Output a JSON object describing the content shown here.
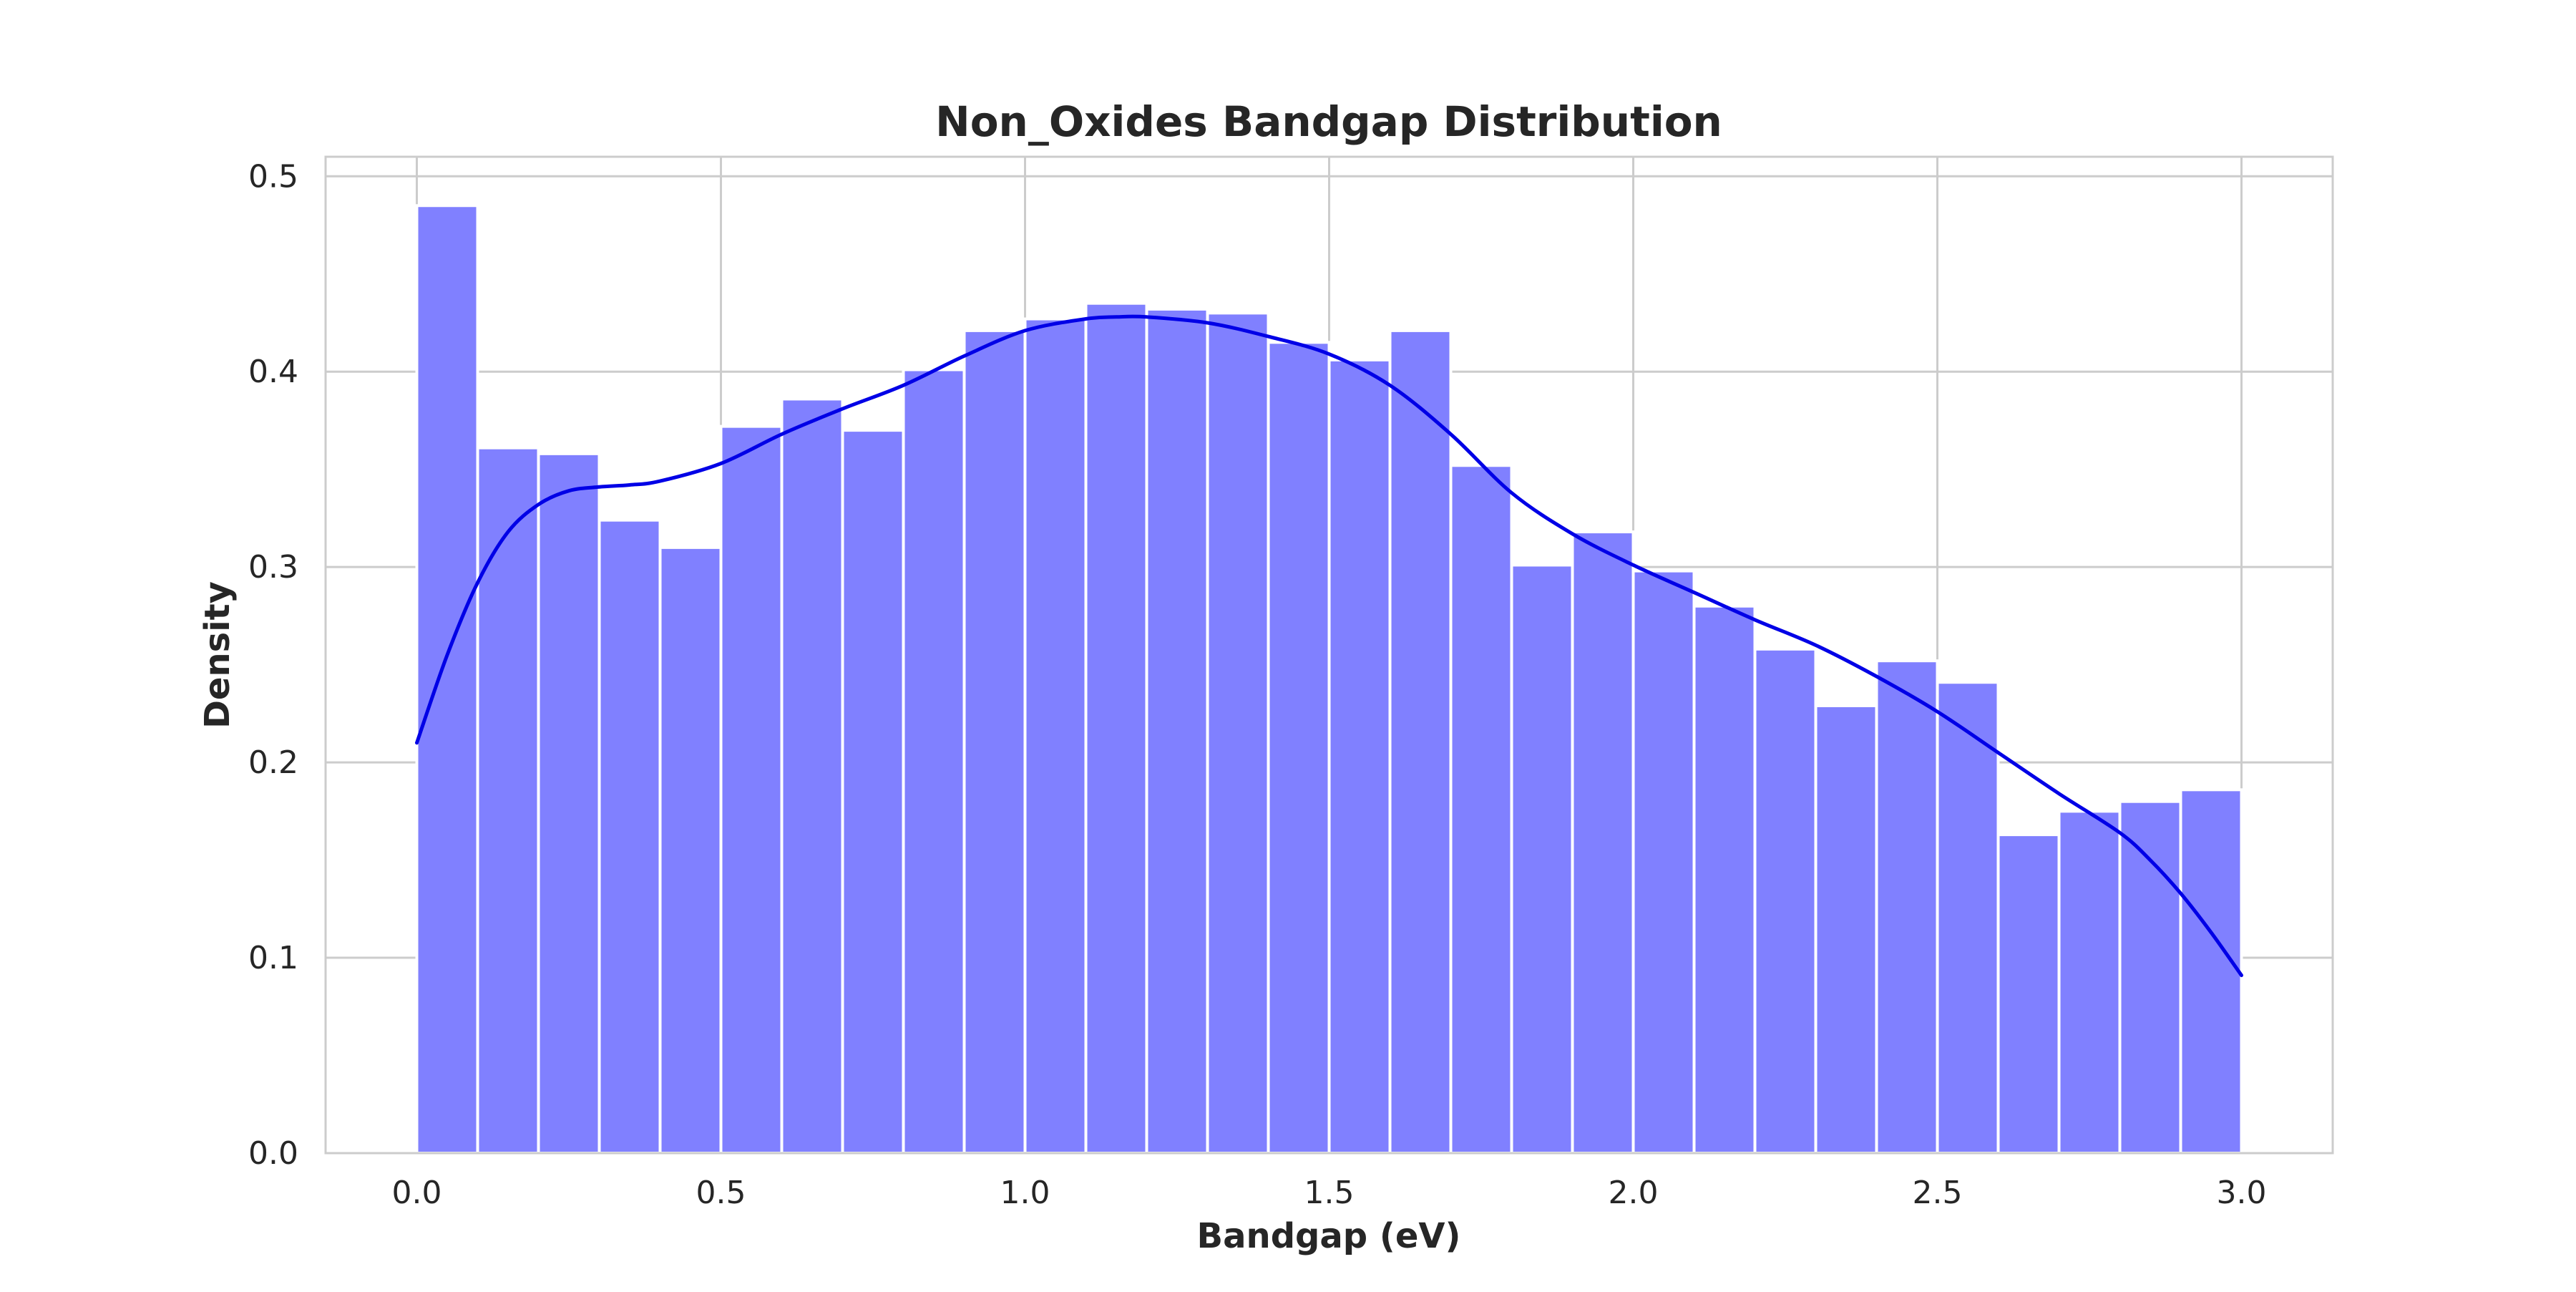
{
  "chart_data": {
    "type": "bar",
    "title": "Non_Oxides Bandgap Distribution",
    "xlabel": "Bandgap (eV)",
    "ylabel": "Density",
    "xlim": [
      -0.15,
      3.15
    ],
    "ylim": [
      0,
      0.51
    ],
    "x_ticks": [
      0.0,
      0.5,
      1.0,
      1.5,
      2.0,
      2.5,
      3.0
    ],
    "x_tick_labels": [
      "0.0",
      "0.5",
      "1.0",
      "1.5",
      "2.0",
      "2.5",
      "3.0"
    ],
    "y_ticks": [
      0.0,
      0.1,
      0.2,
      0.3,
      0.4,
      0.5
    ],
    "y_tick_labels": [
      "0.0",
      "0.1",
      "0.2",
      "0.3",
      "0.4",
      "0.5"
    ],
    "grid": true,
    "bin_edges": [
      0.0,
      0.1,
      0.2,
      0.3,
      0.4,
      0.5,
      0.6,
      0.7,
      0.8,
      0.9,
      1.0,
      1.1,
      1.2,
      1.3,
      1.4,
      1.5,
      1.6,
      1.7,
      1.8,
      1.9,
      2.0,
      2.1,
      2.2,
      2.3,
      2.4,
      2.5,
      2.6,
      2.7,
      2.8,
      2.9,
      3.0
    ],
    "values": [
      0.485,
      0.361,
      0.358,
      0.324,
      0.31,
      0.372,
      0.386,
      0.37,
      0.401,
      0.421,
      0.427,
      0.435,
      0.432,
      0.43,
      0.415,
      0.406,
      0.421,
      0.352,
      0.301,
      0.318,
      0.298,
      0.28,
      0.258,
      0.229,
      0.252,
      0.241,
      0.163,
      0.175,
      0.18,
      0.186
    ],
    "kde": {
      "x": [
        0.0,
        0.05,
        0.1,
        0.15,
        0.2,
        0.25,
        0.3,
        0.35,
        0.4,
        0.5,
        0.6,
        0.7,
        0.8,
        0.9,
        1.0,
        1.1,
        1.15,
        1.2,
        1.3,
        1.4,
        1.5,
        1.6,
        1.7,
        1.8,
        1.9,
        2.0,
        2.1,
        2.2,
        2.3,
        2.4,
        2.5,
        2.6,
        2.7,
        2.8,
        2.85,
        2.9,
        2.95,
        3.0
      ],
      "y": [
        0.21,
        0.255,
        0.292,
        0.318,
        0.332,
        0.339,
        0.341,
        0.342,
        0.344,
        0.353,
        0.368,
        0.381,
        0.393,
        0.408,
        0.421,
        0.427,
        0.428,
        0.428,
        0.425,
        0.418,
        0.409,
        0.393,
        0.368,
        0.338,
        0.317,
        0.301,
        0.287,
        0.273,
        0.26,
        0.244,
        0.226,
        0.205,
        0.184,
        0.164,
        0.15,
        0.133,
        0.113,
        0.091
      ]
    },
    "colors": {
      "bar_fill": "#8080ff",
      "kde_line": "#0000e6"
    }
  }
}
